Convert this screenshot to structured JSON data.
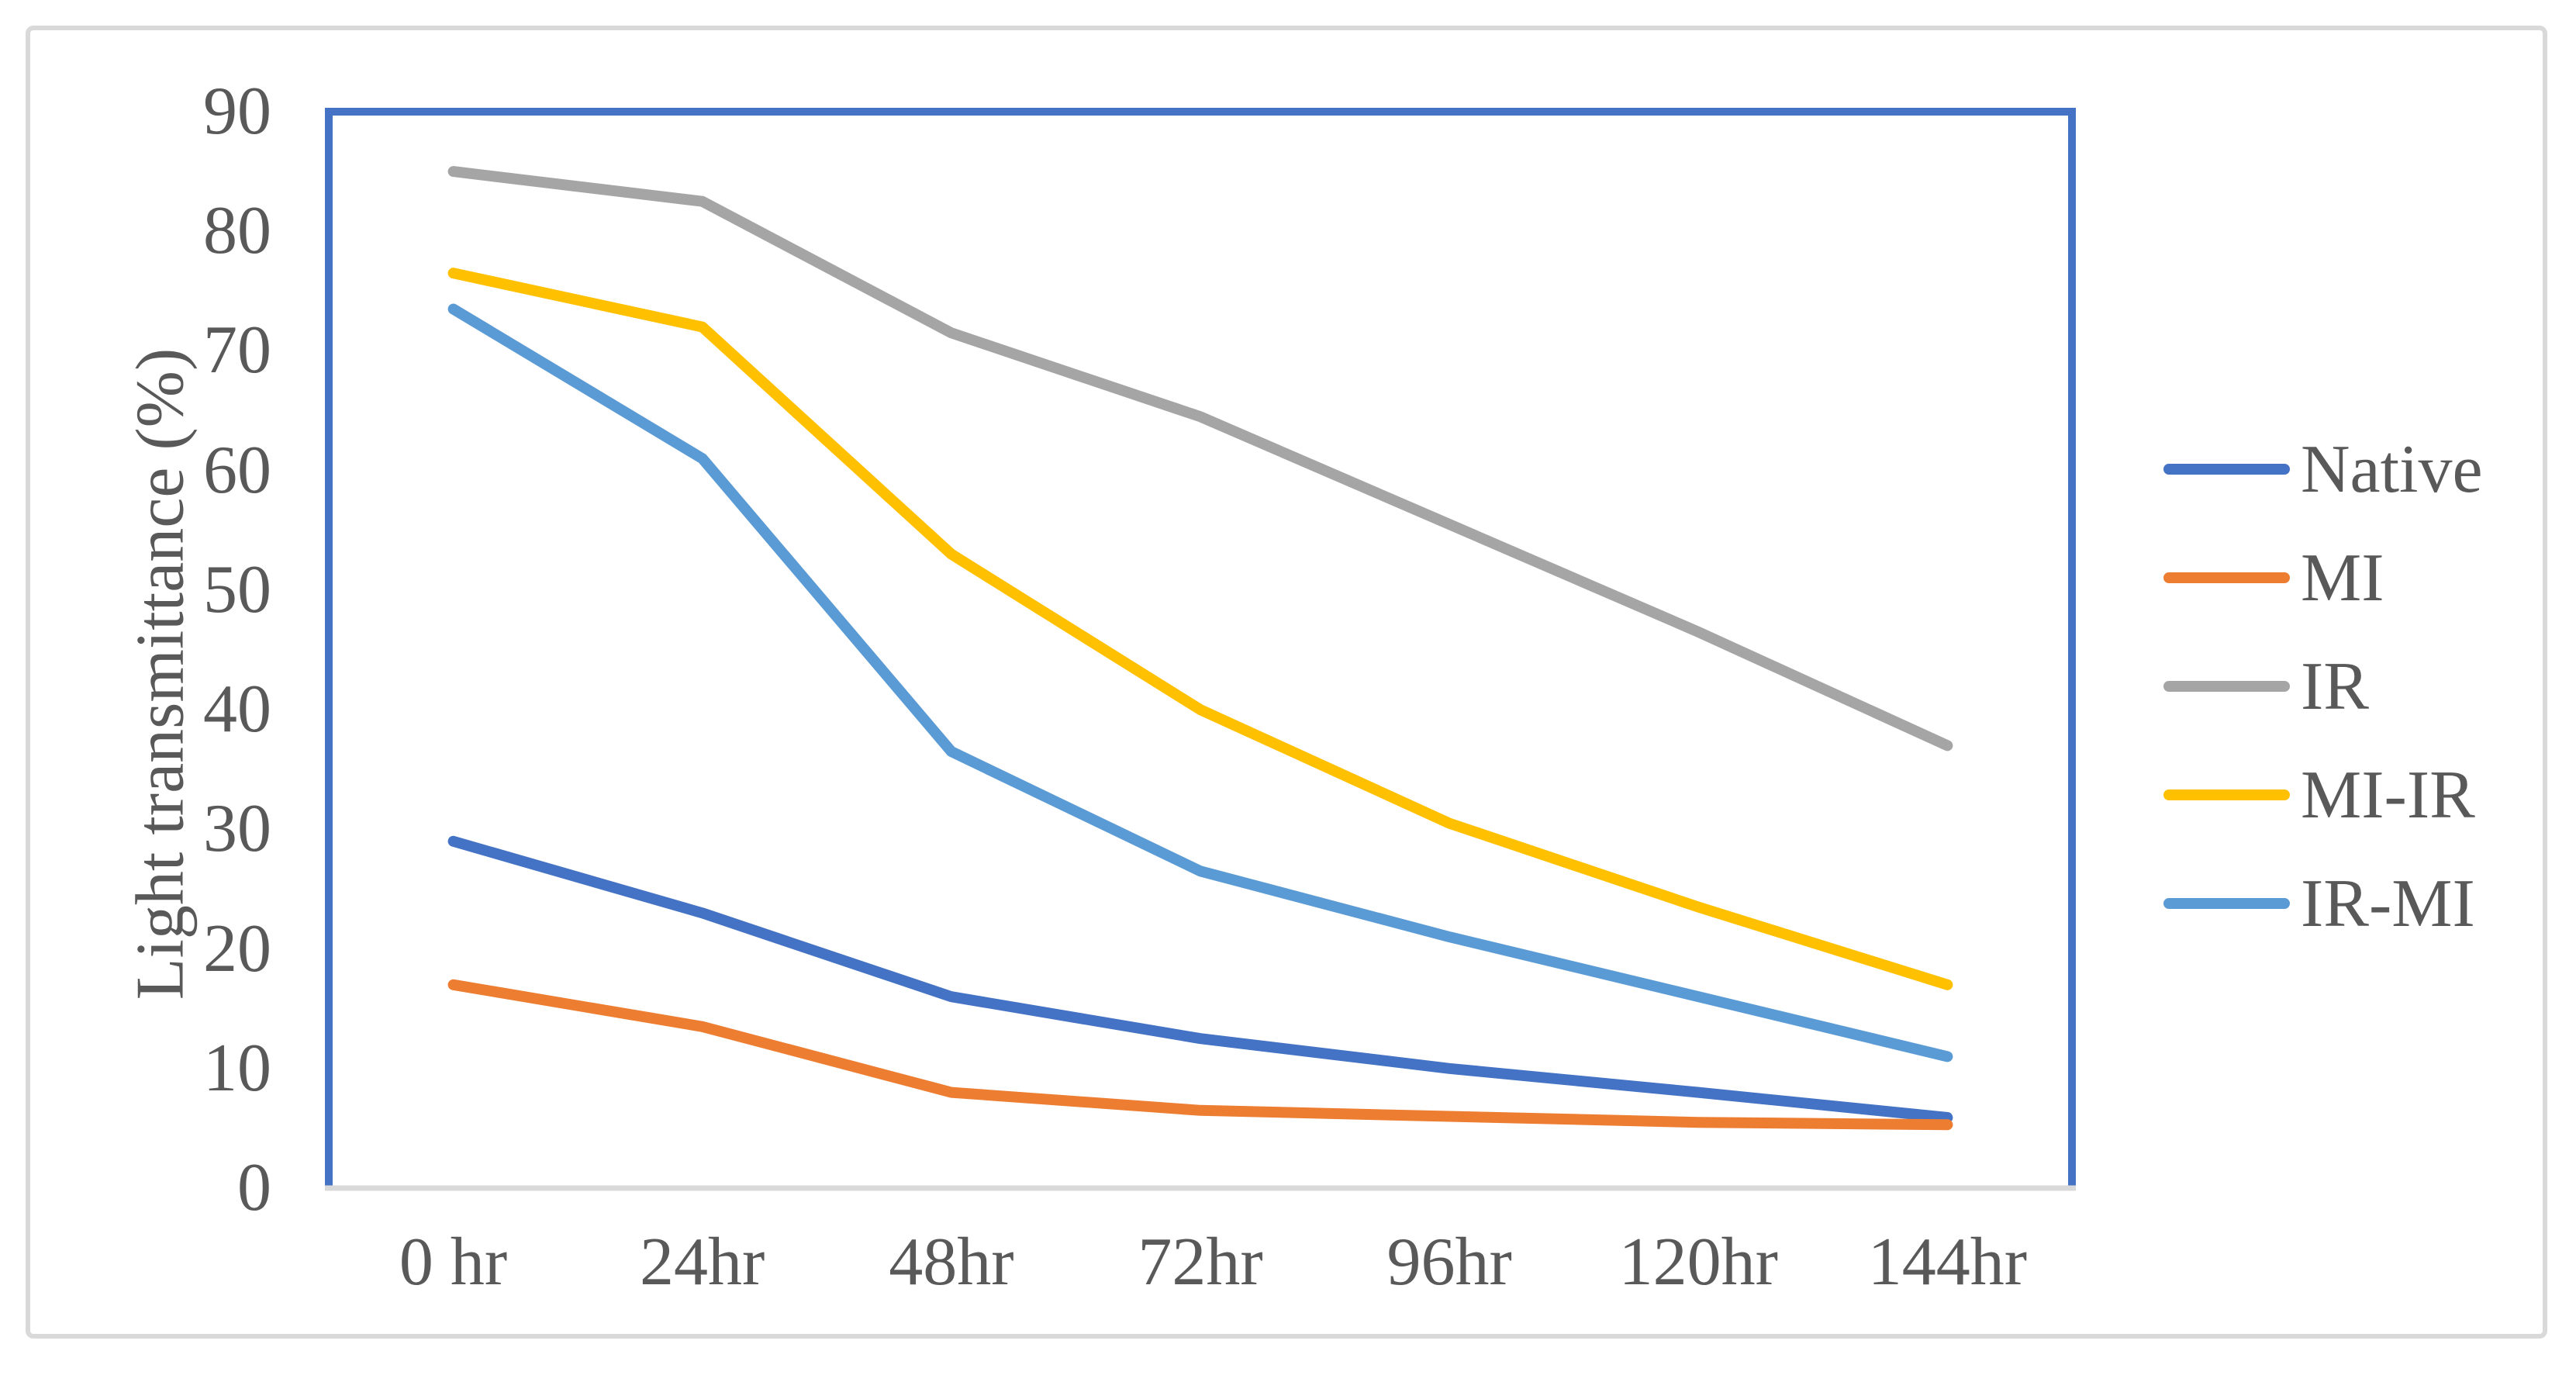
{
  "figure": {
    "kind": "line-chart-figure"
  },
  "chart_data": {
    "type": "line",
    "title": "",
    "xlabel": "",
    "ylabel": "Light transmittance (%)",
    "ylim": [
      0,
      90
    ],
    "ytick_step": 10,
    "yticks": [
      0,
      10,
      20,
      30,
      40,
      50,
      60,
      70,
      80,
      90
    ],
    "categories": [
      "0 hr",
      "24hr",
      "48hr",
      "72hr",
      "96hr",
      "120hr",
      "144hr"
    ],
    "series": [
      {
        "name": "Native",
        "color": "#4472C4",
        "values": [
          29,
          23,
          16,
          12.5,
          10,
          8,
          5.9
        ]
      },
      {
        "name": "MI",
        "color": "#ED7D31",
        "values": [
          17,
          13.5,
          8,
          6.5,
          6,
          5.5,
          5.3
        ]
      },
      {
        "name": "IR",
        "color": "#A5A5A5",
        "values": [
          85,
          82.5,
          71.5,
          64.5,
          55.5,
          46.5,
          37
        ]
      },
      {
        "name": "MI-IR",
        "color": "#FFC000",
        "values": [
          76.5,
          72,
          53,
          40,
          30.5,
          23.5,
          17
        ]
      },
      {
        "name": "IR-MI",
        "color": "#5B9BD5",
        "values": [
          73.5,
          61,
          36.5,
          26.5,
          21,
          16,
          11
        ]
      }
    ],
    "legend_position": "right",
    "grid": false,
    "plot_border_color": "#4472C4",
    "axis_line_color": "#D9D9D9",
    "text_color": "#595959"
  }
}
